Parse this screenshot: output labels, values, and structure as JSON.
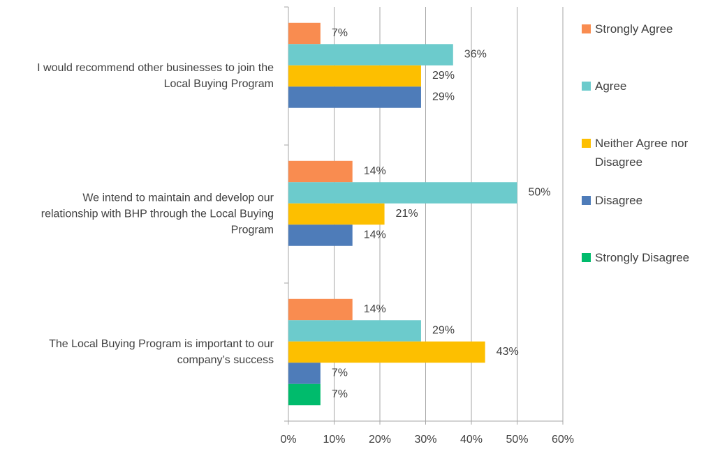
{
  "chart_data": {
    "type": "bar",
    "orientation": "horizontal",
    "categories": [
      "I would recommend other businesses to join the Local Buying Program",
      "We intend to maintain and develop our relationship with BHP through the Local Buying Program",
      "The Local Buying Program is important to our company’s success"
    ],
    "series": [
      {
        "name": "Strongly Agree",
        "color": "#f98c50",
        "values": [
          7,
          14,
          14
        ],
        "value_labels": [
          "7%",
          "14%",
          "14%"
        ]
      },
      {
        "name": "Agree",
        "color": "#6ccbcc",
        "values": [
          36,
          50,
          29
        ],
        "value_labels": [
          "36%",
          "50%",
          "29%"
        ]
      },
      {
        "name": "Neither Agree nor Disagree",
        "color": "#fdbf00",
        "values": [
          29,
          21,
          43
        ],
        "value_labels": [
          "29%",
          "21%",
          "43%"
        ]
      },
      {
        "name": "Disagree",
        "color": "#4e7cb9",
        "values": [
          29,
          14,
          7
        ],
        "value_labels": [
          "29%",
          "14%",
          "7%"
        ]
      },
      {
        "name": "Strongly Disagree",
        "color": "#00bb6c",
        "values": [
          null,
          null,
          7
        ],
        "value_labels": [
          null,
          null,
          "7%"
        ]
      }
    ],
    "xlim": [
      0,
      60
    ],
    "xticks": [
      {
        "value": 0,
        "label": "0%"
      },
      {
        "value": 10,
        "label": "10%"
      },
      {
        "value": 20,
        "label": "20%"
      },
      {
        "value": 30,
        "label": "30%"
      },
      {
        "value": 40,
        "label": "40%"
      },
      {
        "value": 50,
        "label": "50%"
      },
      {
        "value": 60,
        "label": "60%"
      }
    ],
    "grid": true,
    "legend": "right"
  }
}
